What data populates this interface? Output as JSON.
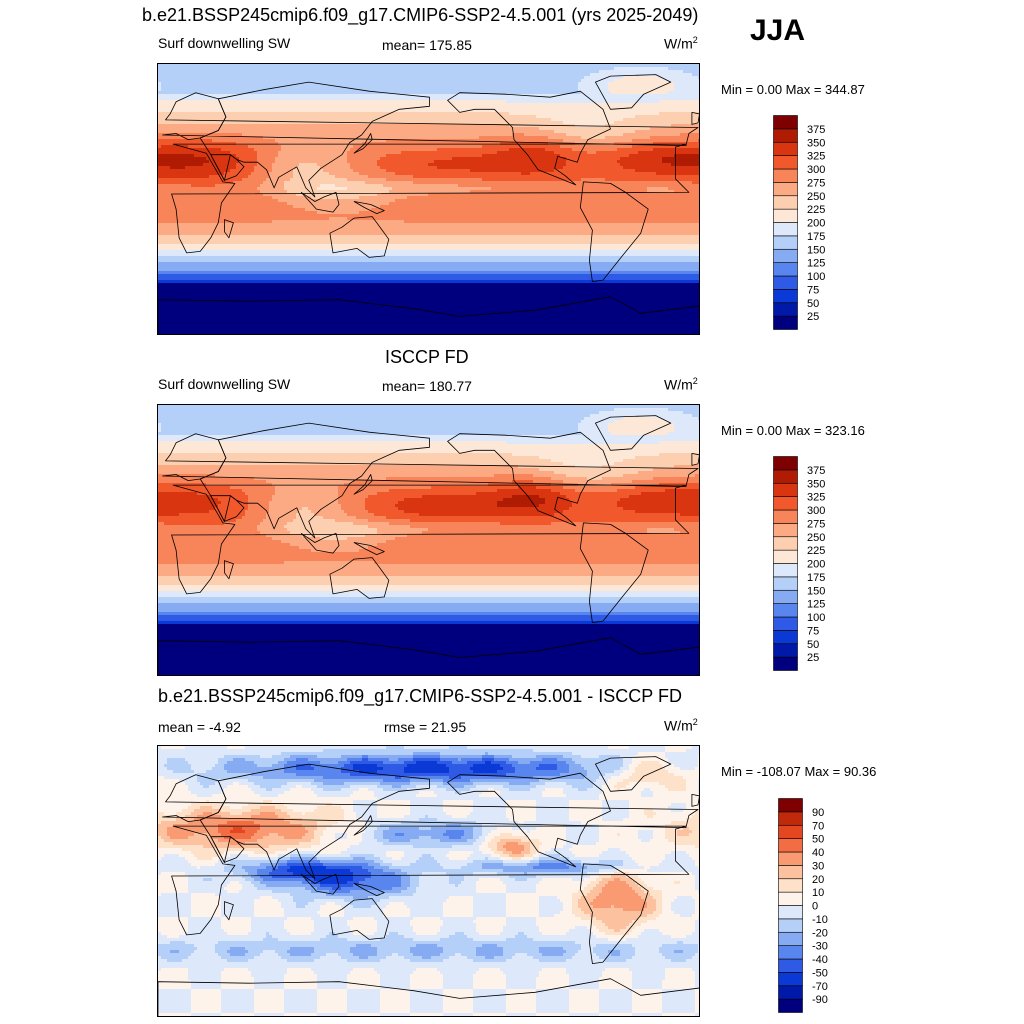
{
  "header": {
    "title": "b.e21.BSSP245cmip6.f09_g17.CMIP6-SSP2-4.5.001 (yrs 2025-2049)",
    "season": "JJA"
  },
  "panels": [
    {
      "title": "",
      "left_label": "Surf downwelling SW",
      "center_label": "mean= 175.85",
      "units_base": "W/m",
      "units_exp": "2",
      "minmax": "Min =   0.00 Max = 344.87",
      "palette": "sw"
    },
    {
      "title": "ISCCP FD",
      "left_label": "Surf downwelling SW",
      "center_label": "mean= 180.77",
      "units_base": "W/m",
      "units_exp": "2",
      "minmax": "Min =   0.00 Max = 323.16",
      "palette": "sw"
    },
    {
      "title": "b.e21.BSSP245cmip6.f09_g17.CMIP6-SSP2-4.5.001 - ISCCP FD",
      "left_label": "mean =  -4.92",
      "center_label": "rmse =  21.95",
      "units_base": "W/m",
      "units_exp": "2",
      "minmax": "Min = -108.07 Max =  90.36",
      "palette": "diff"
    }
  ],
  "chart_data": [
    {
      "type": "heatmap",
      "title": "b.e21.BSSP245cmip6.f09_g17.CMIP6-SSP2-4.5.001 (yrs 2025-2049)",
      "variable": "Surf downwelling SW",
      "units": "W/m2",
      "mean": 175.85,
      "min": 0.0,
      "max": 344.87,
      "colorbar_levels": [
        25,
        50,
        75,
        100,
        125,
        150,
        175,
        200,
        225,
        250,
        275,
        300,
        325,
        350,
        375
      ],
      "colorbar_colors": [
        "#00007f",
        "#0019a8",
        "#0a39d6",
        "#2f5ae6",
        "#5885ee",
        "#86abf3",
        "#b4cff8",
        "#dde9fb",
        "#fde7d6",
        "#fdcfb1",
        "#fcaa83",
        "#f8845a",
        "#f1592d",
        "#d93510",
        "#b01b04",
        "#7f0000"
      ]
    },
    {
      "type": "heatmap",
      "title": "ISCCP FD",
      "variable": "Surf downwelling SW",
      "units": "W/m2",
      "mean": 180.77,
      "min": 0.0,
      "max": 323.16,
      "colorbar_levels": [
        25,
        50,
        75,
        100,
        125,
        150,
        175,
        200,
        225,
        250,
        275,
        300,
        325,
        350,
        375
      ],
      "colorbar_colors": [
        "#00007f",
        "#0019a8",
        "#0a39d6",
        "#2f5ae6",
        "#5885ee",
        "#86abf3",
        "#b4cff8",
        "#dde9fb",
        "#fde7d6",
        "#fdcfb1",
        "#fcaa83",
        "#f8845a",
        "#f1592d",
        "#d93510",
        "#b01b04",
        "#7f0000"
      ]
    },
    {
      "type": "heatmap",
      "title": "b.e21.BSSP245cmip6.f09_g17.CMIP6-SSP2-4.5.001 - ISCCP FD",
      "units": "W/m2",
      "mean": -4.92,
      "rmse": 21.95,
      "min": -108.07,
      "max": 90.36,
      "colorbar_levels": [
        -90,
        -70,
        -50,
        -40,
        -30,
        -20,
        -10,
        0,
        10,
        20,
        30,
        40,
        50,
        70,
        90
      ],
      "colorbar_colors": [
        "#00007f",
        "#0019a8",
        "#0a39d6",
        "#2f5ae6",
        "#5885ee",
        "#86abf3",
        "#b4cff8",
        "#dde9fb",
        "#fdf3ea",
        "#fde1c9",
        "#fcc19f",
        "#f99a72",
        "#f26d43",
        "#e4461f",
        "#c02a0b",
        "#7f0000"
      ]
    }
  ]
}
